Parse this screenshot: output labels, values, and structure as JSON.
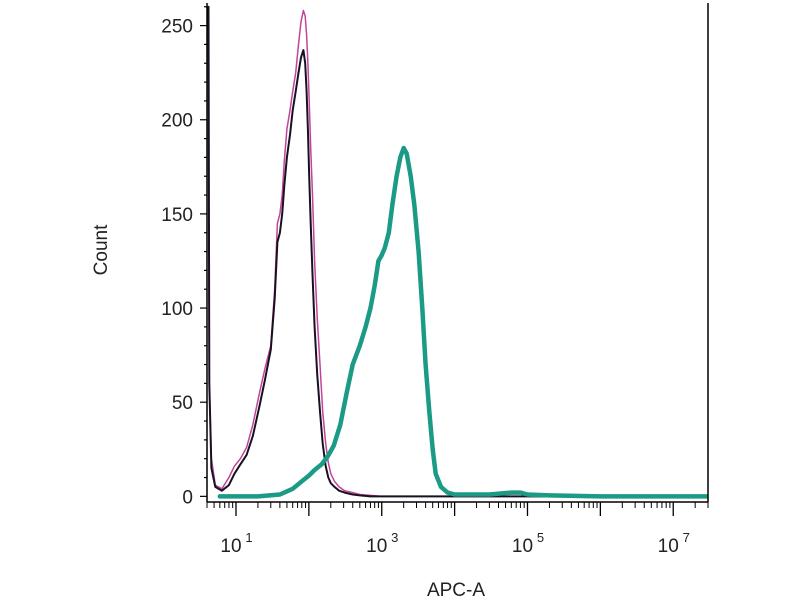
{
  "chart_data": {
    "type": "line",
    "title": "",
    "xlabel": "APC-A",
    "ylabel": "Count",
    "xscale": "log",
    "xlim": [
      4,
      30000000
    ],
    "ylim": [
      -3,
      262
    ],
    "grid": false,
    "x_ticks": [
      {
        "base": "10",
        "exp": "1",
        "value": 10
      },
      {
        "base": "10",
        "exp": "3",
        "value": 1000
      },
      {
        "base": "10",
        "exp": "5",
        "value": 100000
      },
      {
        "base": "10",
        "exp": "7",
        "value": 10000000
      }
    ],
    "y_ticks": [
      {
        "label": "0",
        "value": 0
      },
      {
        "label": "50",
        "value": 50
      },
      {
        "label": "100",
        "value": 100
      },
      {
        "label": "150",
        "value": 150
      },
      {
        "label": "200",
        "value": 200
      },
      {
        "label": "250",
        "value": 250
      }
    ],
    "series": [
      {
        "color": "#c0449a",
        "width": 1.5,
        "x": [
          4.2,
          4.3,
          4.6,
          5.2,
          6.4,
          8,
          9.5,
          11.5,
          14,
          17,
          21,
          25,
          30,
          34,
          37,
          40,
          43,
          46,
          50,
          55,
          60,
          66,
          72,
          78,
          84,
          89,
          93,
          97,
          101,
          106,
          112,
          120,
          130,
          142,
          155,
          170,
          185,
          200,
          225,
          260,
          310,
          400,
          500,
          700,
          1000,
          1500,
          3000,
          10000,
          100000,
          1000000,
          30000000
        ],
        "y": [
          200,
          60,
          20,
          6,
          4,
          10,
          16,
          20,
          26,
          38,
          55,
          68,
          80,
          110,
          145,
          150,
          160,
          178,
          195,
          205,
          215,
          225,
          240,
          252,
          258,
          255,
          245,
          230,
          210,
          185,
          160,
          125,
          95,
          70,
          45,
          28,
          18,
          12,
          8,
          5,
          3,
          2,
          1,
          0.5,
          0,
          0,
          0,
          0,
          0,
          0,
          0
        ]
      },
      {
        "color": "#1a1020",
        "width": 2,
        "x": [
          4.2,
          4.3,
          4.6,
          5.2,
          6.4,
          8,
          9.5,
          11.5,
          14,
          17,
          21,
          25,
          30,
          34,
          37,
          40,
          43,
          46,
          50,
          55,
          60,
          66,
          72,
          78,
          84,
          89,
          93,
          97,
          101,
          106,
          112,
          120,
          130,
          142,
          155,
          170,
          185,
          200,
          225,
          260,
          310,
          400,
          500,
          700,
          1000,
          1500,
          3000,
          10000,
          100000,
          1000000,
          30000000
        ],
        "y": [
          260,
          60,
          15,
          5,
          3,
          6,
          12,
          17,
          22,
          32,
          48,
          62,
          78,
          105,
          135,
          140,
          150,
          165,
          180,
          192,
          205,
          215,
          225,
          233,
          237,
          230,
          215,
          195,
          170,
          145,
          118,
          90,
          65,
          45,
          28,
          16,
          10,
          7,
          5,
          3,
          2,
          1,
          0.5,
          0,
          0,
          0,
          0,
          0,
          0,
          0,
          0
        ]
      },
      {
        "color": "#1b9a86",
        "width": 4.5,
        "x": [
          6,
          10,
          20,
          40,
          60,
          80,
          100,
          120,
          150,
          180,
          220,
          270,
          330,
          400,
          500,
          600,
          700,
          800,
          900,
          1000,
          1100,
          1250,
          1400,
          1600,
          1800,
          2000,
          2200,
          2500,
          2800,
          3200,
          3600,
          4000,
          4500,
          5000,
          5500,
          6500,
          8000,
          10000,
          15000,
          30000,
          60000,
          80000,
          100000,
          200000,
          1000000,
          30000000
        ],
        "y": [
          0,
          0,
          0,
          1,
          4,
          8,
          11,
          14,
          17,
          21,
          27,
          38,
          55,
          70,
          80,
          90,
          100,
          112,
          125,
          128,
          132,
          140,
          155,
          170,
          180,
          185,
          182,
          170,
          155,
          130,
          100,
          70,
          45,
          25,
          12,
          5,
          2,
          1,
          1,
          1,
          2,
          2,
          1,
          0.5,
          0,
          0
        ]
      }
    ]
  }
}
